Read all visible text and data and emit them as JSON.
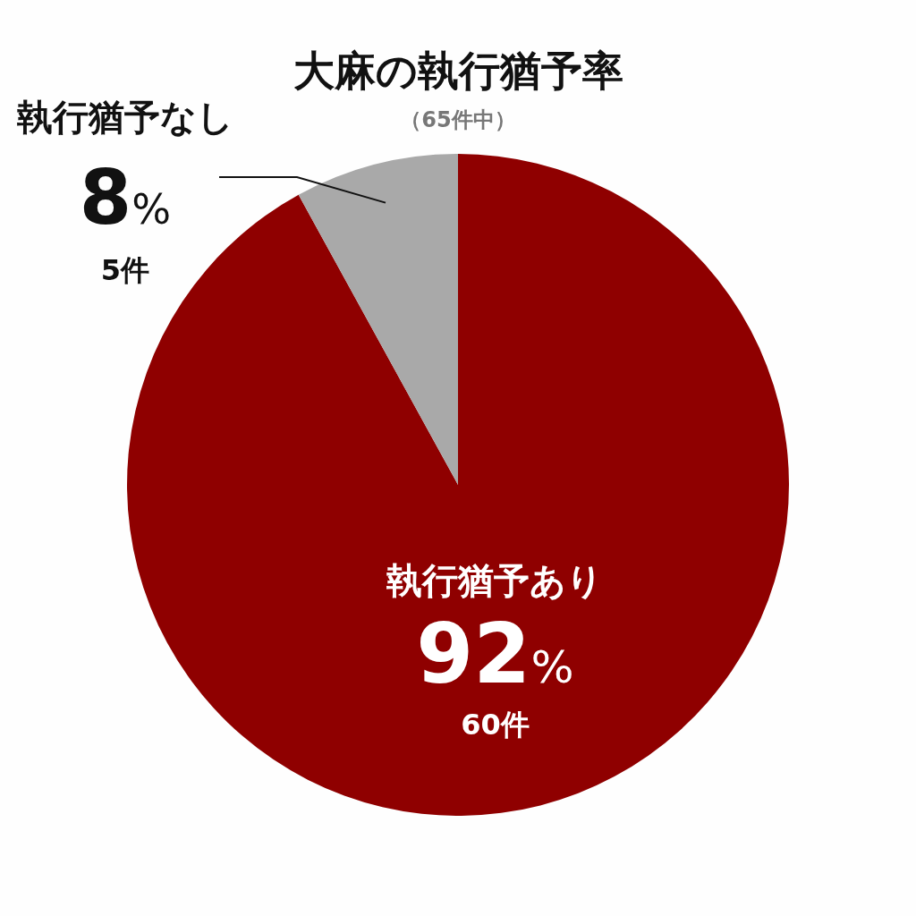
{
  "chart_data": {
    "type": "pie",
    "title": "大麻の執行猶予率",
    "subtitle": "（65件中）",
    "categories": [
      "執行猶予あり",
      "執行猶予なし"
    ],
    "values": [
      92,
      8
    ],
    "colors": [
      "#8f0000",
      "#a9a9a9"
    ],
    "value_labels": [
      "92%",
      "8%"
    ],
    "annotations": [
      "60件",
      "5件"
    ]
  }
}
